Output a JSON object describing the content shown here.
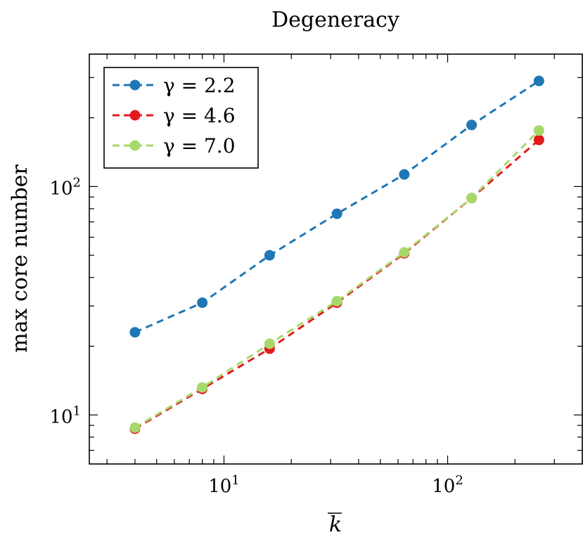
{
  "chart_data": {
    "type": "line",
    "title": "Degeneracy",
    "xlabel": "k",
    "xlabel_overline": true,
    "ylabel": "max core number",
    "x_scale": "log",
    "y_scale": "log",
    "xlim": [
      2.5,
      400
    ],
    "ylim": [
      6.1,
      380
    ],
    "x_ticks": [
      {
        "value": 10,
        "base": "10",
        "exp": "1"
      },
      {
        "value": 100,
        "base": "10",
        "exp": "2"
      }
    ],
    "y_ticks": [
      {
        "value": 10,
        "base": "10",
        "exp": "1"
      },
      {
        "value": 100,
        "base": "10",
        "exp": "2"
      }
    ],
    "x": [
      4,
      8,
      16,
      32,
      64,
      128,
      256
    ],
    "series": [
      {
        "name": "γ = 2.2",
        "color": "#1f77b4",
        "values": [
          23,
          31,
          50,
          76,
          113,
          186,
          290
        ]
      },
      {
        "name": "γ = 4.6",
        "color": "#e31a1c",
        "values": [
          8.7,
          13.0,
          19.5,
          31,
          51,
          89,
          160
        ]
      },
      {
        "name": "γ = 7.0",
        "color": "#a6d96a",
        "values": [
          8.8,
          13.2,
          20.5,
          31.5,
          51.5,
          89,
          176
        ]
      }
    ],
    "legend_position": "top-left",
    "grid": false
  }
}
